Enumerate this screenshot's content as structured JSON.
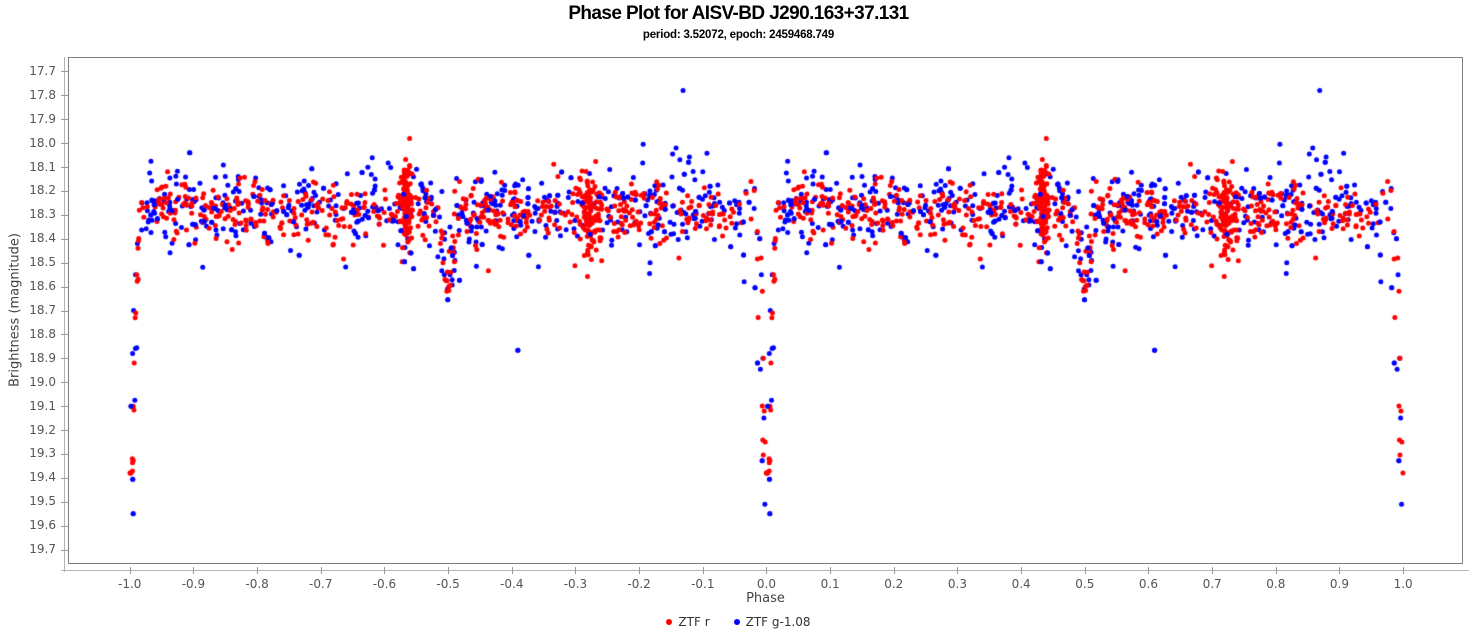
{
  "chart": {
    "title": "Phase Plot for AISV-BD J290.163+37.131",
    "subtitle": "period: 3.52072, epoch: 2459468.749"
  },
  "chart_data": {
    "type": "scatter",
    "title": "Phase Plot for AISV-BD J290.163+37.131",
    "subtitle": "period: 3.52072, epoch: 2459468.749",
    "object": "AISV-BD J290.163+37.131",
    "period": 3.52072,
    "epoch": 2459468.749,
    "xlabel": "Phase",
    "ylabel": "Brightness (magnitude)",
    "grid": false,
    "x_axis": {
      "min": -1.097,
      "max": 1.094,
      "tick_labels": [
        "-1.0",
        "-0.9",
        "-0.8",
        "-0.7",
        "-0.6",
        "-0.5",
        "-0.4",
        "-0.3",
        "-0.2",
        "-0.1",
        "0.0",
        "0.1",
        "0.2",
        "0.3",
        "0.4",
        "0.5",
        "0.6",
        "0.7",
        "0.8",
        "0.9",
        "1.0"
      ]
    },
    "y_axis": {
      "top_mag": 17.64,
      "bottom_mag": 19.76,
      "inverted": true,
      "tick_labels": [
        "17.7",
        "17.8",
        "17.9",
        "18.0",
        "18.1",
        "18.2",
        "18.3",
        "18.4",
        "18.5",
        "18.6",
        "18.7",
        "18.8",
        "18.9",
        "19.0",
        "19.1",
        "19.2",
        "19.3",
        "19.4",
        "19.5",
        "19.6",
        "19.7"
      ]
    },
    "legend": {
      "position": "bottom-center",
      "entries": [
        "ZTF r",
        "ZTF g-1.08"
      ]
    },
    "light_curve_model": {
      "baseline_mag": 18.28,
      "phase_range_plotted": [
        -1.0,
        1.0
      ],
      "data_duplicated_at_phase_minus_one": true,
      "primary_eclipse": {
        "phase": 0.0,
        "min_mag_r": 19.32,
        "min_mag_g": 19.51,
        "half_width_phase": 0.016
      },
      "secondary_eclipse": {
        "phase": 0.5,
        "min_mag": 18.62,
        "half_width_phase": 0.015
      }
    },
    "series": [
      {
        "name": "ZTF r",
        "color": "#ff0000",
        "marker": "dot",
        "marker_diameter_px": 5,
        "gen": {
          "seed": 7,
          "n_band": 560,
          "band_mag": 18.29,
          "band_sigma": 0.055,
          "wide_frac": 0.1,
          "wide_sigma": 0.12,
          "primary_depth": 1.55,
          "secondary_depth": 0.33,
          "max_mag": 19.38,
          "clusters": [
            {
              "phase": 0.434,
              "n": 115,
              "phase_sigma": 0.0045,
              "mag_mean": 18.27,
              "mag_sigma": 0.085
            },
            {
              "phase": 0.722,
              "n": 90,
              "phase_sigma": 0.009,
              "mag_mean": 18.3,
              "mag_sigma": 0.09
            }
          ],
          "explicit_points": [
            [
              0.9915,
              18.48
            ],
            [
              0.9935,
              18.62
            ],
            [
              0.995,
              18.9
            ],
            [
              0.9965,
              19.12
            ],
            [
              0.998,
              19.25
            ],
            [
              0.004,
              19.32
            ],
            [
              0.0055,
              19.1
            ],
            [
              0.007,
              18.92
            ],
            [
              0.0085,
              18.73
            ],
            [
              0.0095,
              18.71
            ],
            [
              0.011,
              18.55
            ],
            [
              0.013,
              18.44
            ],
            [
              0.488,
              18.42
            ],
            [
              0.492,
              18.5
            ],
            [
              0.495,
              18.57
            ],
            [
              0.498,
              18.62
            ],
            [
              0.501,
              18.6
            ],
            [
              0.504,
              18.54
            ],
            [
              0.508,
              18.46
            ]
          ]
        }
      },
      {
        "name": "ZTF g-1.08",
        "color": "#0000ff",
        "marker": "dot",
        "marker_diameter_px": 5,
        "gen": {
          "seed": 13,
          "n_band": 500,
          "band_mag": 18.28,
          "band_sigma": 0.08,
          "wide_frac": 0.18,
          "wide_sigma": 0.16,
          "primary_depth": 1.95,
          "secondary_depth": 0.33,
          "max_mag": 19.55,
          "clusters": [],
          "explicit_points": [
            [
              0.9895,
              18.4
            ],
            [
              0.992,
              18.55
            ],
            [
              0.9945,
              18.9
            ],
            [
              0.996,
              19.15
            ],
            [
              0.9975,
              19.51
            ],
            [
              0.002,
              19.1
            ],
            [
              0.0045,
              18.88
            ],
            [
              0.006,
              18.7
            ],
            [
              0.009,
              18.55
            ],
            [
              0.012,
              18.42
            ],
            [
              0.986,
              18.92
            ],
            [
              0.965,
              18.58
            ],
            [
              0.869,
              17.78
            ],
            [
              0.858,
              18.02
            ],
            [
              0.864,
              18.07
            ],
            [
              0.871,
              18.13
            ],
            [
              0.49,
              18.45
            ],
            [
              0.494,
              18.55
            ],
            [
              0.499,
              18.61
            ],
            [
              0.503,
              18.55
            ],
            [
              0.507,
              18.47
            ]
          ]
        }
      }
    ]
  }
}
